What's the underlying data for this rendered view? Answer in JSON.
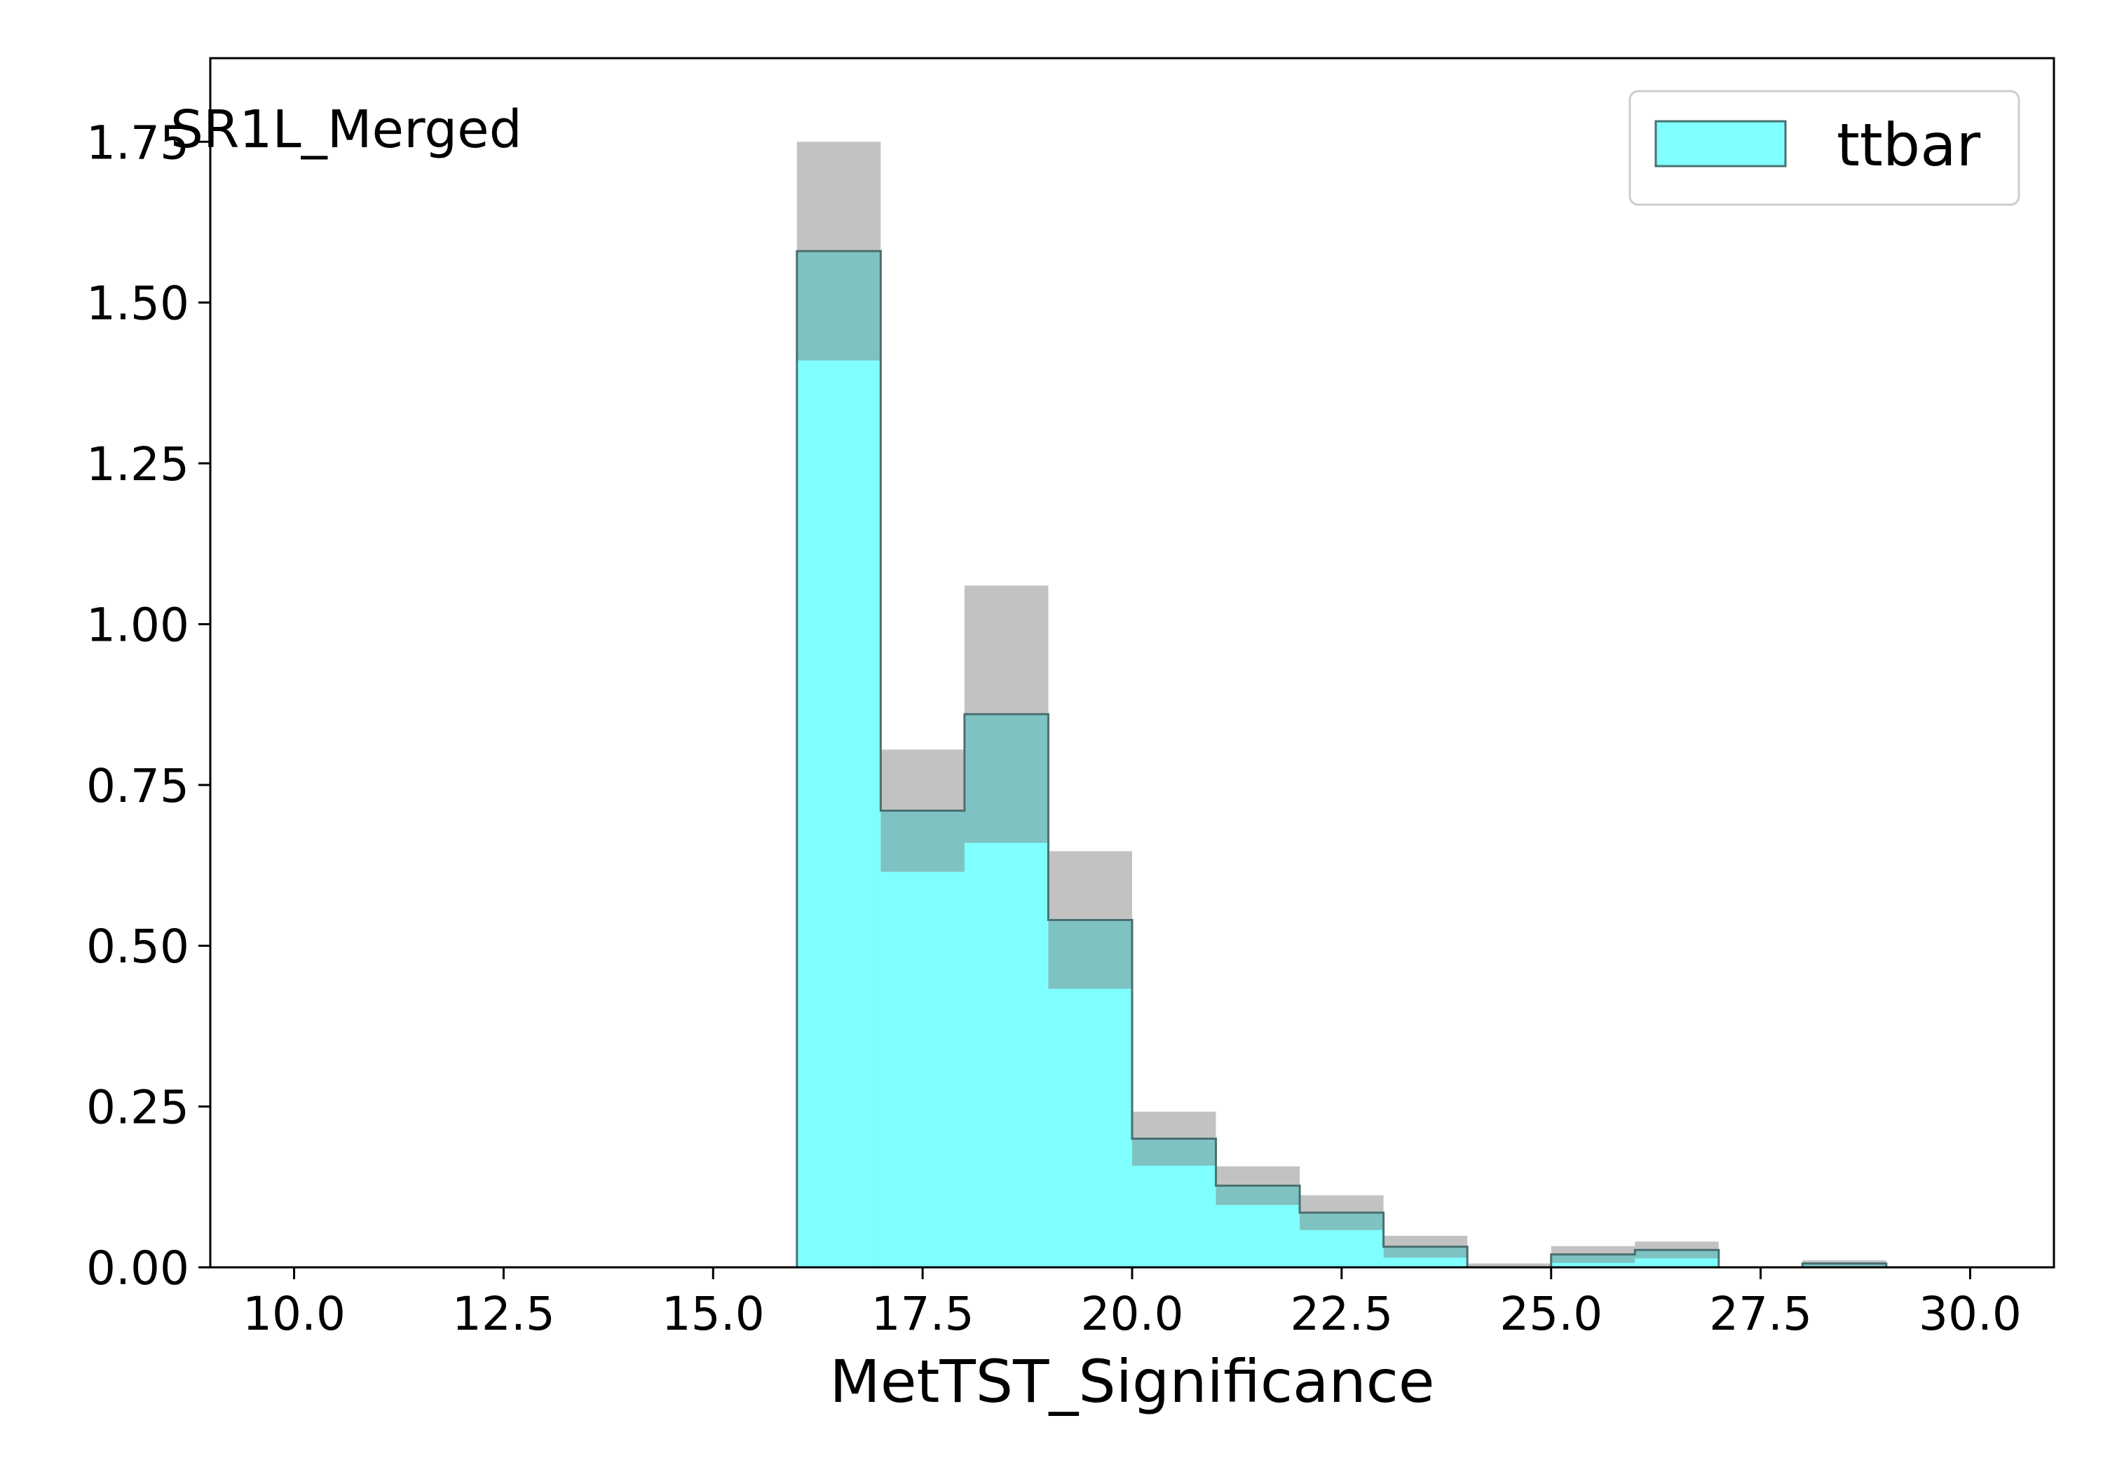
{
  "chart_data": {
    "type": "bar",
    "histogram": true,
    "annotation": "SR1L_Merged",
    "xlabel": "MetTST_Significance",
    "ylabel": "",
    "xlim": [
      9.0,
      31.0
    ],
    "ylim": [
      0.0,
      1.88
    ],
    "xticks": [
      "10.0",
      "12.5",
      "15.0",
      "17.5",
      "20.0",
      "22.5",
      "25.0",
      "27.5",
      "30.0"
    ],
    "yticks": [
      "0.00",
      "0.25",
      "0.50",
      "0.75",
      "1.00",
      "1.25",
      "1.50",
      "1.75"
    ],
    "grid": false,
    "legend_position": "top-right",
    "series": [
      {
        "name": "ttbar",
        "color": "#7fffff",
        "edge_color": "#4a6f70",
        "bins": [
          {
            "x0": 16,
            "x1": 17,
            "value": 1.58,
            "unc": 0.17
          },
          {
            "x0": 17,
            "x1": 18,
            "value": 0.71,
            "unc": 0.095
          },
          {
            "x0": 18,
            "x1": 19,
            "value": 0.86,
            "unc": 0.2
          },
          {
            "x0": 19,
            "x1": 20,
            "value": 0.54,
            "unc": 0.107
          },
          {
            "x0": 20,
            "x1": 21,
            "value": 0.2,
            "unc": 0.042
          },
          {
            "x0": 21,
            "x1": 22,
            "value": 0.127,
            "unc": 0.03
          },
          {
            "x0": 22,
            "x1": 23,
            "value": 0.085,
            "unc": 0.027
          },
          {
            "x0": 23,
            "x1": 24,
            "value": 0.032,
            "unc": 0.017
          },
          {
            "x0": 24,
            "x1": 25,
            "value": 0.0,
            "unc": 0.006
          },
          {
            "x0": 25,
            "x1": 26,
            "value": 0.02,
            "unc": 0.013
          },
          {
            "x0": 26,
            "x1": 27,
            "value": 0.027,
            "unc": 0.013
          },
          {
            "x0": 27,
            "x1": 28,
            "value": 0.0,
            "unc": 0.0
          },
          {
            "x0": 28,
            "x1": 29,
            "value": 0.006,
            "unc": 0.005
          }
        ]
      }
    ],
    "uncertainty_color": "#808080"
  }
}
